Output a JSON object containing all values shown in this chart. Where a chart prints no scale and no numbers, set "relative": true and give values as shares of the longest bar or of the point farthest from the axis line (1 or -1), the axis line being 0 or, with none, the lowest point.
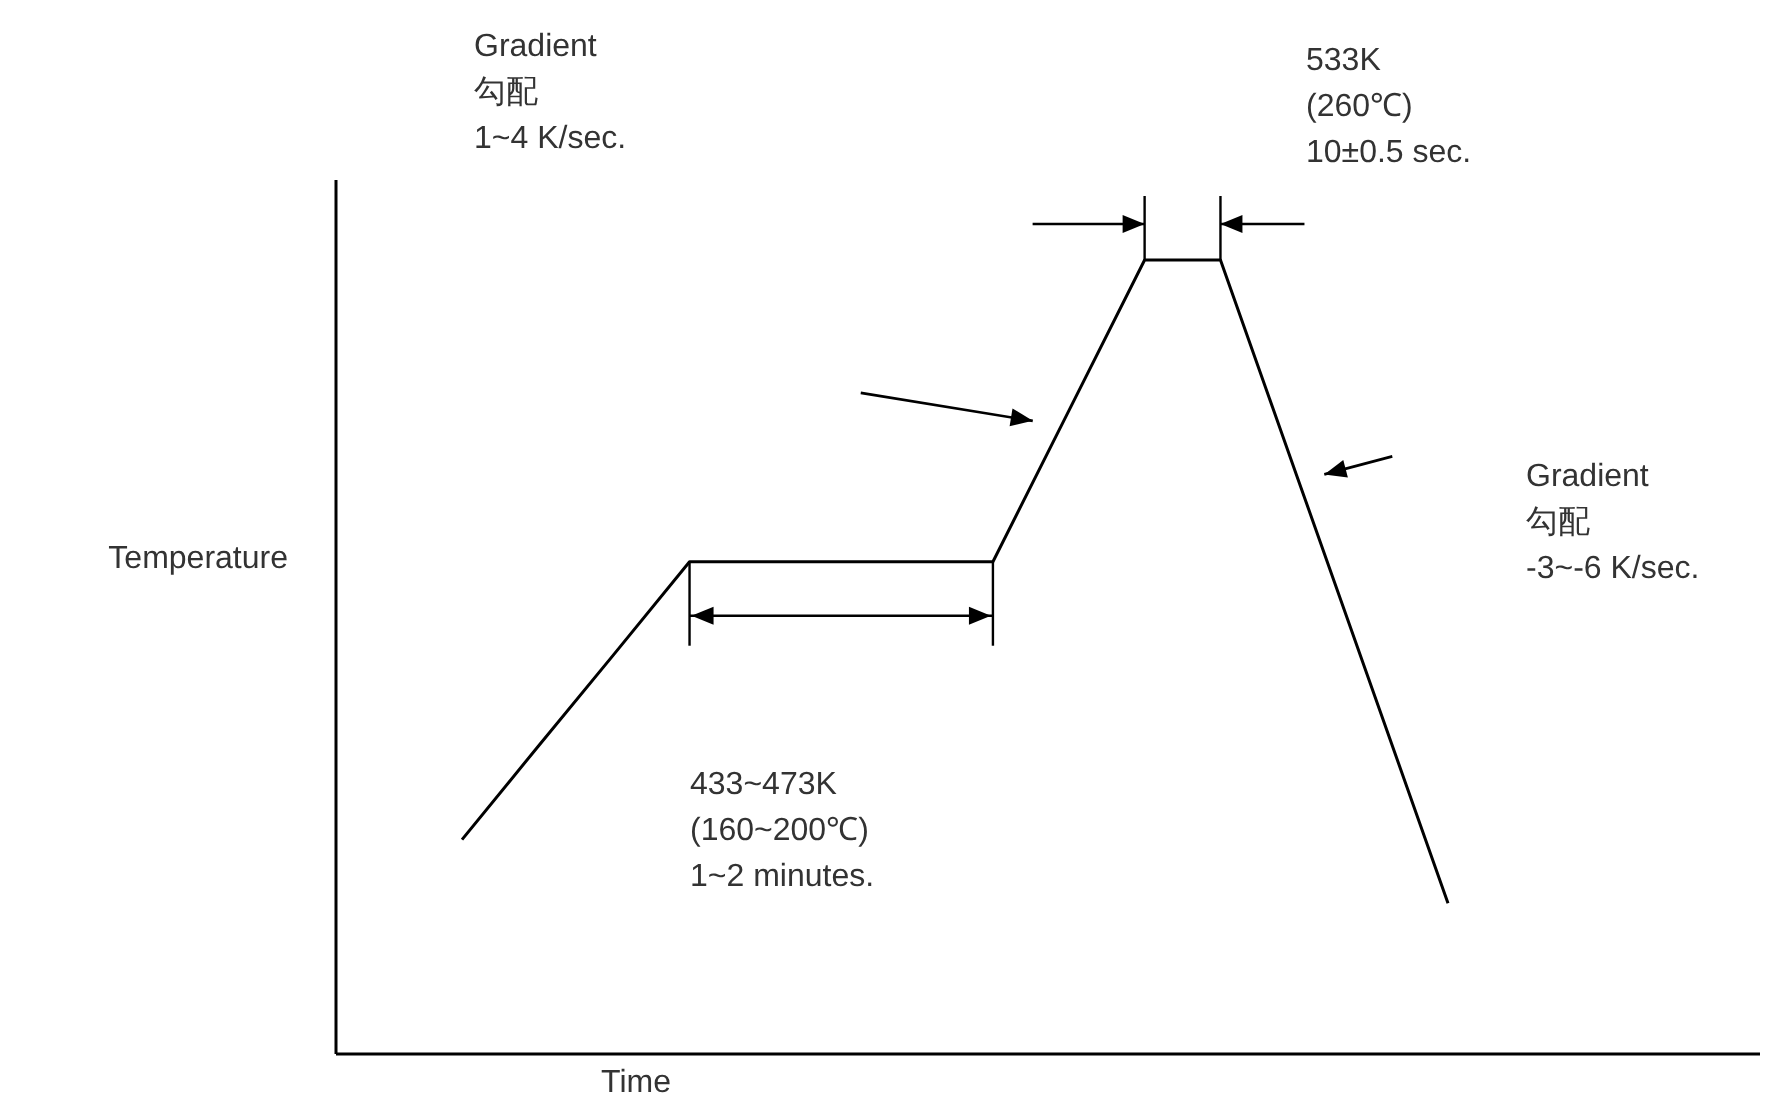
{
  "chart_data": {
    "type": "line",
    "relative": true,
    "xlabel": "Time",
    "ylabel": "Temperature",
    "categories": [
      null,
      null,
      null,
      null,
      null,
      null,
      null,
      null,
      null,
      null,
      null,
      null,
      null,
      null
    ],
    "series": [
      {
        "color": "#000000",
        "values": [
          0.27,
          0.387,
          0.503,
          0.62,
          0.62,
          0.62,
          0.62,
          0.62,
          0.81,
          1,
          1,
          0.73,
          0.46,
          0.19
        ]
      }
    ],
    "annotations": [
      "Gradient\n勾配\n1~4 K/sec.",
      "533K\n(260℃)\n10±0.5 sec.",
      "433~473K\n(160~200℃)\n1~2 minutes.",
      "Gradient\n勾配\n-3~-6 K/sec."
    ]
  }
}
